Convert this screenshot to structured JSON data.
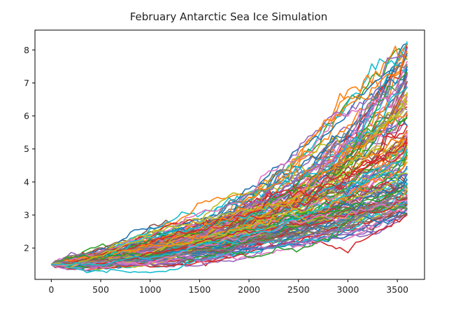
{
  "chart_data": {
    "type": "line",
    "title": "February Antarctic Sea Ice Simulation",
    "xlabel": "",
    "ylabel": "",
    "xlim": [
      -165,
      3775
    ],
    "ylim": [
      1.05,
      8.6
    ],
    "x_ticks": [
      0,
      500,
      1000,
      1500,
      2000,
      2500,
      3000,
      3500
    ],
    "y_ticks": [
      2,
      3,
      4,
      5,
      6,
      7,
      8
    ],
    "grid": false,
    "legend": "none",
    "x": {
      "start": 0,
      "end": 3600,
      "step": 40
    },
    "series_count": 150,
    "start_value": 1.5,
    "end_value_range": [
      3.0,
      8.3
    ],
    "colors": [
      "#1f77b4",
      "#ff7f0e",
      "#2ca02c",
      "#d62728",
      "#9467bd",
      "#8c564b",
      "#e377c2",
      "#7f7f7f",
      "#bcbd22",
      "#17becf"
    ]
  }
}
